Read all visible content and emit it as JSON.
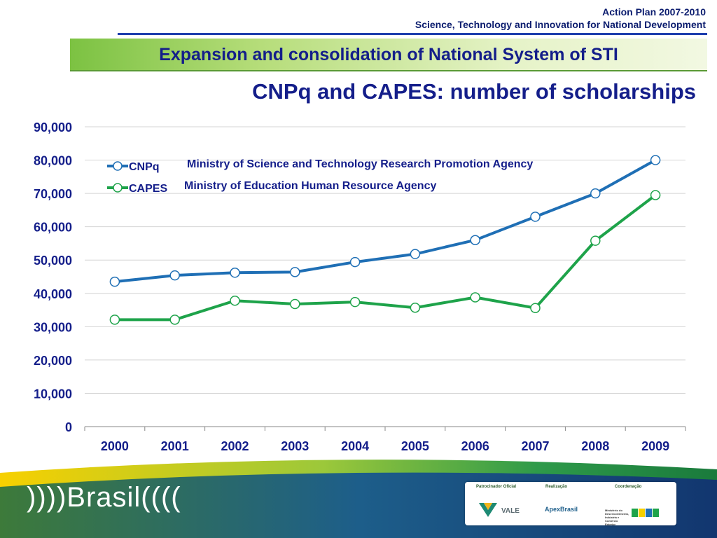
{
  "header": {
    "line1": "Action Plan 2007-2010",
    "line2": "Science, Technology and Innovation for National Development"
  },
  "banner": {
    "title": "Expansion and consolidation of National System of STI"
  },
  "chart_data": {
    "type": "line",
    "title": "CNPq and CAPES: number of scholarships",
    "x": [
      "2000",
      "2001",
      "2002",
      "2003",
      "2004",
      "2005",
      "2006",
      "2007",
      "2008",
      "2009"
    ],
    "ylim": [
      0,
      90000
    ],
    "yticks": [
      0,
      10000,
      20000,
      30000,
      40000,
      50000,
      60000,
      70000,
      80000,
      90000
    ],
    "ytick_labels": [
      "0",
      "10,000",
      "20,000",
      "30,000",
      "40,000",
      "50,000",
      "60,000",
      "70,000",
      "80,000",
      "90,000"
    ],
    "grid": true,
    "legend_position": "top-left",
    "series": [
      {
        "name": "CNPq",
        "description": "Ministry of Science and Technology Research Promotion Agency",
        "color": "#1f6fb5",
        "values": [
          43500,
          45400,
          46200,
          46400,
          49400,
          51800,
          56000,
          63000,
          70000,
          80000
        ]
      },
      {
        "name": "CAPES",
        "description": "Ministry of Education Human Resource Agency",
        "color": "#1ea34a",
        "values": [
          32100,
          32100,
          37800,
          36800,
          37400,
          35700,
          38800,
          35600,
          55800,
          69500
        ]
      }
    ]
  },
  "footer": {
    "brand": "))))Brasil((((",
    "sponsor_label": "Patrocinador Oficial",
    "realization_label": "Realização",
    "coordination_label": "Coordenação",
    "sponsor_name": "VALE",
    "realization_name": "ApexBrasil",
    "coordination_name": "Ministério do Desenvolvimento, Indústria e Comércio Exterior"
  }
}
